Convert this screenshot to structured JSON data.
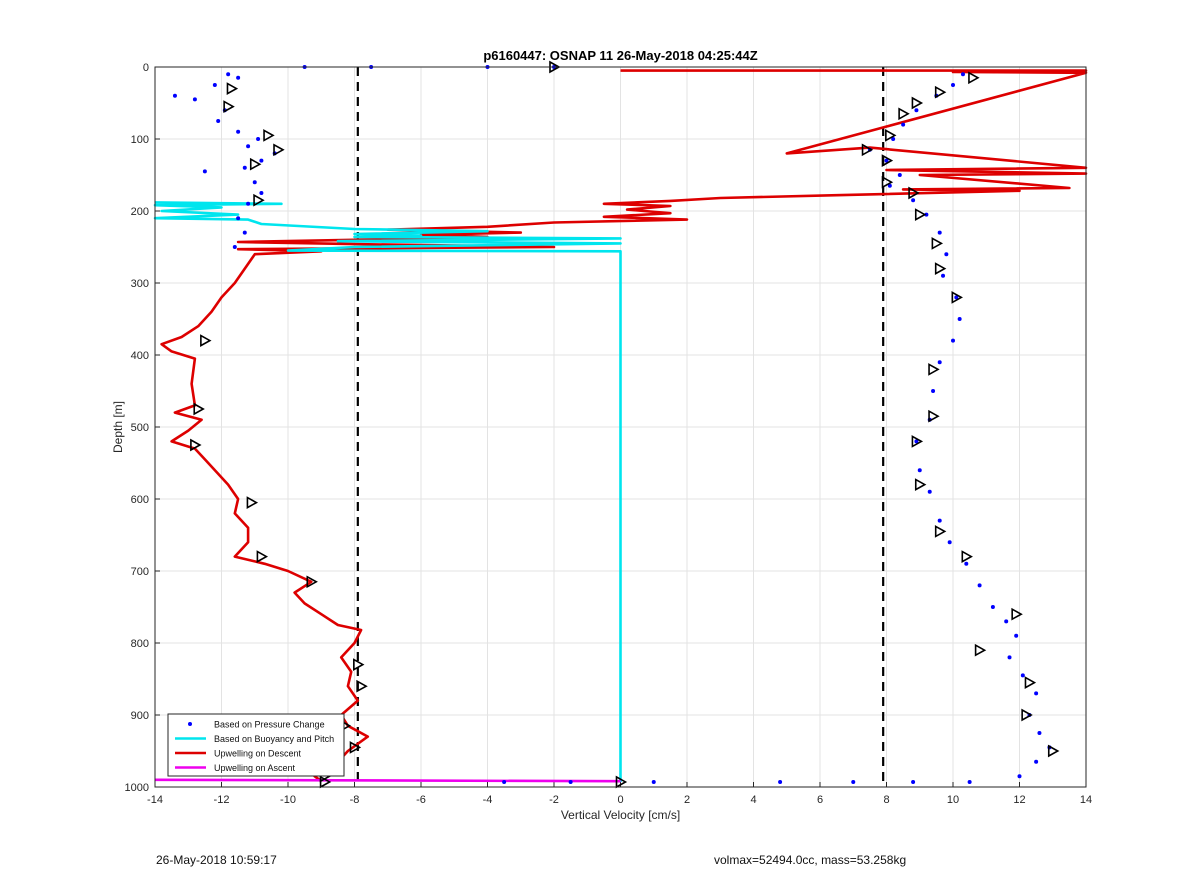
{
  "chart_data": {
    "type": "scatter",
    "title": "p6160447: OSNAP 11 26-May-2018 04:25:44Z",
    "xlabel": "Vertical Velocity [cm/s]",
    "ylabel": "Depth [m]",
    "xlim": [
      -14,
      14
    ],
    "ylim": [
      1000,
      0
    ],
    "y_reversed": true,
    "grid": true,
    "legend_position": "bottom-left",
    "xticks": [
      -14,
      -12,
      -10,
      -8,
      -6,
      -4,
      -2,
      0,
      2,
      4,
      6,
      8,
      10,
      12,
      14
    ],
    "yticks": [
      0,
      100,
      200,
      300,
      400,
      500,
      600,
      700,
      800,
      900,
      1000
    ],
    "reference_lines": [
      -7.9,
      7.9
    ],
    "colors": {
      "pressure": "#0000ff",
      "buoyancy": "#00e5ee",
      "descent": "#dd0000",
      "ascent": "#ee00ee"
    },
    "series": [
      {
        "name": "Based on Pressure Change",
        "marker": "dot",
        "points": [
          [
            -11.8,
            10
          ],
          [
            -11.5,
            15
          ],
          [
            -12.2,
            25
          ],
          [
            -13.4,
            40
          ],
          [
            -12.8,
            45
          ],
          [
            -11.9,
            60
          ],
          [
            -12.1,
            75
          ],
          [
            -11.5,
            90
          ],
          [
            -10.9,
            100
          ],
          [
            -11.2,
            110
          ],
          [
            -10.4,
            120
          ],
          [
            -10.8,
            130
          ],
          [
            -11.3,
            140
          ],
          [
            -12.5,
            145
          ],
          [
            -11.0,
            160
          ],
          [
            -10.8,
            175
          ],
          [
            -11.2,
            190
          ],
          [
            -11.5,
            210
          ],
          [
            -11.3,
            230
          ],
          [
            -11.6,
            250
          ],
          [
            -9.5,
            0
          ],
          [
            -7.5,
            0
          ],
          [
            -4.0,
            0
          ],
          [
            -2.0,
            0
          ],
          [
            10.3,
            10
          ],
          [
            10.0,
            25
          ],
          [
            9.5,
            40
          ],
          [
            8.9,
            60
          ],
          [
            8.5,
            80
          ],
          [
            8.2,
            100
          ],
          [
            7.5,
            115
          ],
          [
            8.0,
            130
          ],
          [
            8.4,
            150
          ],
          [
            8.1,
            165
          ],
          [
            8.8,
            185
          ],
          [
            9.2,
            205
          ],
          [
            9.6,
            230
          ],
          [
            9.8,
            260
          ],
          [
            9.7,
            290
          ],
          [
            10.1,
            320
          ],
          [
            10.2,
            350
          ],
          [
            10.0,
            380
          ],
          [
            9.6,
            410
          ],
          [
            9.4,
            450
          ],
          [
            9.3,
            490
          ],
          [
            8.9,
            520
          ],
          [
            9.0,
            560
          ],
          [
            9.3,
            590
          ],
          [
            9.6,
            630
          ],
          [
            9.9,
            660
          ],
          [
            10.4,
            690
          ],
          [
            10.8,
            720
          ],
          [
            11.2,
            750
          ],
          [
            11.6,
            770
          ],
          [
            11.9,
            790
          ],
          [
            11.7,
            820
          ],
          [
            12.1,
            845
          ],
          [
            12.5,
            870
          ],
          [
            12.3,
            900
          ],
          [
            12.6,
            925
          ],
          [
            12.9,
            945
          ],
          [
            12.5,
            965
          ],
          [
            12.0,
            985
          ],
          [
            -3.5,
            993
          ],
          [
            -1.5,
            993
          ],
          [
            1.0,
            993
          ],
          [
            4.8,
            993
          ],
          [
            7.0,
            993
          ],
          [
            8.8,
            993
          ],
          [
            10.5,
            993
          ]
        ]
      },
      {
        "name": "Based on Buoyancy and Pitch",
        "marker": "line",
        "points": [
          [
            -14,
            188
          ],
          [
            -10.2,
            190
          ],
          [
            -14,
            192
          ],
          [
            -12.0,
            195
          ],
          [
            -13.8,
            200
          ],
          [
            -11.5,
            205
          ],
          [
            -14,
            210
          ],
          [
            -11.2,
            212
          ],
          [
            -10.8,
            218
          ],
          [
            -8.0,
            225
          ],
          [
            -4.0,
            228
          ],
          [
            -8.0,
            232
          ],
          [
            -6.0,
            234
          ],
          [
            -8.0,
            236
          ],
          [
            0,
            238
          ],
          [
            -4.0,
            240
          ],
          [
            -8.5,
            242
          ],
          [
            0,
            245
          ],
          [
            -8.0,
            250
          ],
          [
            -10.0,
            255
          ],
          [
            0,
            256
          ],
          [
            0,
            258
          ],
          [
            0,
            600
          ],
          [
            0,
            990
          ],
          [
            0,
            993
          ]
        ]
      },
      {
        "name": "Upwelling on Descent",
        "marker": "line",
        "points": [
          [
            0,
            5
          ],
          [
            14,
            5
          ],
          [
            10.0,
            7
          ],
          [
            14,
            8
          ],
          [
            5.0,
            120
          ],
          [
            7.5,
            112
          ],
          [
            14,
            140
          ],
          [
            8.0,
            143
          ],
          [
            14,
            148
          ],
          [
            9.0,
            150
          ],
          [
            13.5,
            168
          ],
          [
            8.5,
            170
          ],
          [
            12.0,
            172
          ],
          [
            6.5,
            178
          ],
          [
            3.0,
            182
          ],
          [
            1.5,
            186
          ],
          [
            -0.5,
            190
          ],
          [
            1.5,
            193
          ],
          [
            0.2,
            198
          ],
          [
            1.5,
            203
          ],
          [
            -0.5,
            208
          ],
          [
            2.0,
            212
          ],
          [
            -2.0,
            216
          ],
          [
            -4.0,
            222
          ],
          [
            -7.0,
            226
          ],
          [
            -3.0,
            230
          ],
          [
            -6.0,
            233
          ],
          [
            -4.0,
            236
          ],
          [
            -8.0,
            240
          ],
          [
            -11.5,
            243
          ],
          [
            -8.0,
            246
          ],
          [
            -2.0,
            250
          ],
          [
            -11.5,
            253
          ],
          [
            -9.0,
            256
          ],
          [
            -11.0,
            260
          ],
          [
            -11.3,
            280
          ],
          [
            -11.6,
            300
          ],
          [
            -12.0,
            320
          ],
          [
            -12.3,
            340
          ],
          [
            -12.7,
            360
          ],
          [
            -13.2,
            375
          ],
          [
            -13.8,
            385
          ],
          [
            -13.5,
            395
          ],
          [
            -12.8,
            405
          ],
          [
            -12.9,
            440
          ],
          [
            -12.8,
            470
          ],
          [
            -13.4,
            480
          ],
          [
            -12.6,
            490
          ],
          [
            -13.0,
            505
          ],
          [
            -13.5,
            520
          ],
          [
            -12.8,
            530
          ],
          [
            -12.5,
            545
          ],
          [
            -12.2,
            560
          ],
          [
            -11.8,
            580
          ],
          [
            -11.5,
            600
          ],
          [
            -11.6,
            620
          ],
          [
            -11.2,
            640
          ],
          [
            -11.2,
            660
          ],
          [
            -11.6,
            680
          ],
          [
            -10.7,
            690
          ],
          [
            -10.0,
            700
          ],
          [
            -9.3,
            715
          ],
          [
            -9.8,
            730
          ],
          [
            -9.5,
            745
          ],
          [
            -9.0,
            760
          ],
          [
            -8.5,
            775
          ],
          [
            -7.8,
            782
          ],
          [
            -8.0,
            800
          ],
          [
            -8.4,
            820
          ],
          [
            -8.1,
            840
          ],
          [
            -8.2,
            860
          ],
          [
            -7.9,
            880
          ],
          [
            -8.4,
            900
          ],
          [
            -8.2,
            915
          ],
          [
            -7.6,
            930
          ],
          [
            -8.2,
            950
          ],
          [
            -8.6,
            970
          ],
          [
            -9.2,
            985
          ],
          [
            -9.0,
            992
          ]
        ]
      },
      {
        "name": "Upwelling on Ascent",
        "marker": "line",
        "points": [
          [
            -14,
            990
          ],
          [
            0,
            992
          ]
        ]
      },
      {
        "name": "",
        "marker": "triangle",
        "points": [
          [
            -11.7,
            30
          ],
          [
            -11.8,
            55
          ],
          [
            -10.6,
            95
          ],
          [
            -10.3,
            115
          ],
          [
            -11.0,
            135
          ],
          [
            -10.9,
            185
          ],
          [
            -12.5,
            380
          ],
          [
            -12.7,
            475
          ],
          [
            -12.8,
            525
          ],
          [
            -11.1,
            605
          ],
          [
            -10.8,
            680
          ],
          [
            -9.3,
            715
          ],
          [
            -7.9,
            830
          ],
          [
            -7.8,
            860
          ],
          [
            -8.3,
            915
          ],
          [
            -8.0,
            945
          ],
          [
            -8.9,
            985
          ],
          [
            -8.9,
            993
          ],
          [
            -2.0,
            0
          ],
          [
            0,
            993
          ],
          [
            10.6,
            15
          ],
          [
            9.6,
            35
          ],
          [
            8.9,
            50
          ],
          [
            8.5,
            65
          ],
          [
            8.1,
            95
          ],
          [
            8.0,
            130
          ],
          [
            8.0,
            160
          ],
          [
            8.8,
            175
          ],
          [
            9.0,
            205
          ],
          [
            9.5,
            245
          ],
          [
            9.6,
            280
          ],
          [
            10.1,
            320
          ],
          [
            9.4,
            420
          ],
          [
            9.4,
            485
          ],
          [
            8.9,
            520
          ],
          [
            9.0,
            580
          ],
          [
            9.6,
            645
          ],
          [
            10.4,
            680
          ],
          [
            11.9,
            760
          ],
          [
            10.8,
            810
          ],
          [
            12.3,
            855
          ],
          [
            12.2,
            900
          ],
          [
            13.0,
            950
          ],
          [
            7.4,
            115
          ]
        ]
      }
    ]
  },
  "footer": {
    "left": "26-May-2018 10:59:17",
    "right": "volmax=52494.0cc, mass=53.258kg"
  }
}
